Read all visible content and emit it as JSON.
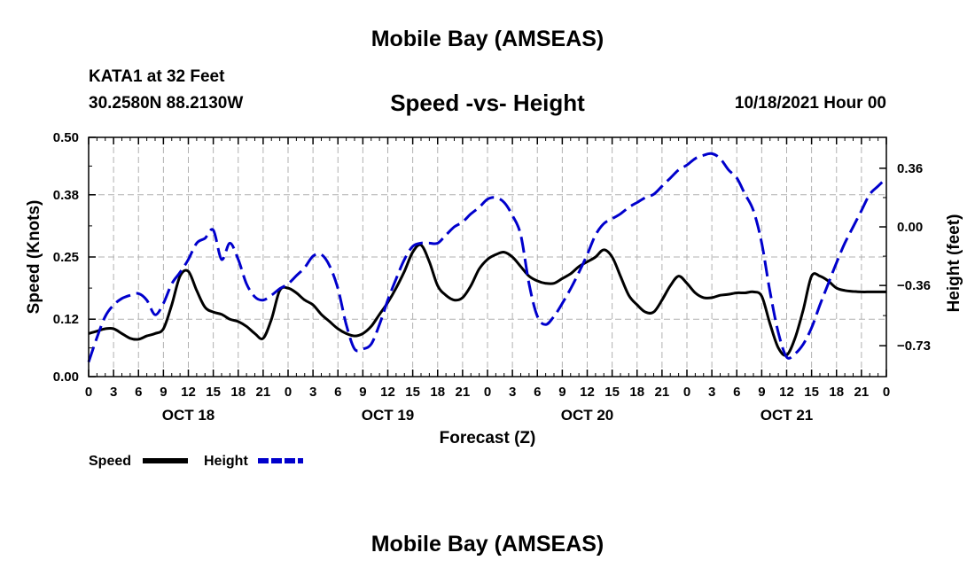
{
  "header": {
    "title": "Mobile Bay (AMSEAS)",
    "station": "KATA1 at 32 Feet",
    "coordinates": "30.2580N  88.2130W",
    "subtitle": "Speed -vs- Height",
    "datetime": "10/18/2021 Hour 00"
  },
  "footer": {
    "title": "Mobile Bay (AMSEAS)"
  },
  "chart_data": {
    "type": "line",
    "title": "Speed -vs- Height",
    "xlabel": "Forecast (Z)",
    "ylabel": "Speed (Knots)",
    "y2label": "Height (feet)",
    "grid": true,
    "xlim": [
      0,
      96
    ],
    "ylim": [
      0,
      0.5
    ],
    "y2lim": [
      -0.92,
      0.55
    ],
    "yticks": [
      0.0,
      0.12,
      0.25,
      0.38,
      0.5
    ],
    "ytick_labels": [
      "0.00",
      "0.12",
      "0.25",
      "0.38",
      "0.50"
    ],
    "y2ticks": [
      -0.73,
      -0.36,
      0.0,
      0.36
    ],
    "y2tick_labels": [
      "−0.73",
      "−0.36",
      "0.00",
      "0.36"
    ],
    "xticks": [
      0,
      3,
      6,
      9,
      12,
      15,
      18,
      21,
      24,
      27,
      30,
      33,
      36,
      39,
      42,
      45,
      48,
      51,
      54,
      57,
      60,
      63,
      66,
      69,
      72,
      75,
      78,
      81,
      84,
      87,
      90,
      93,
      96
    ],
    "xtick_labels": [
      "0",
      "3",
      "6",
      "9",
      "12",
      "15",
      "18",
      "21",
      "0",
      "3",
      "6",
      "9",
      "12",
      "15",
      "18",
      "21",
      "0",
      "3",
      "6",
      "9",
      "12",
      "15",
      "18",
      "21",
      "0",
      "3",
      "6",
      "9",
      "12",
      "15",
      "18",
      "21",
      "0"
    ],
    "day_labels": [
      {
        "hour": 12,
        "label": "OCT 18"
      },
      {
        "hour": 36,
        "label": "OCT 19"
      },
      {
        "hour": 60,
        "label": "OCT 20"
      },
      {
        "hour": 84,
        "label": "OCT 21"
      }
    ],
    "legend_location": "bottom-left",
    "series": [
      {
        "name": "Speed",
        "legend": "Speed",
        "axis": "left",
        "color": "#000000",
        "style": "solid",
        "x": [
          0,
          1,
          2,
          3,
          4,
          5,
          6,
          7,
          8,
          9,
          10,
          11,
          12,
          13,
          14,
          15,
          16,
          17,
          18,
          19,
          20,
          21,
          22,
          23,
          24,
          25,
          26,
          27,
          28,
          29,
          30,
          31,
          32,
          33,
          34,
          35,
          36,
          37,
          38,
          39,
          40,
          41,
          42,
          43,
          44,
          45,
          46,
          47,
          48,
          49,
          50,
          51,
          52,
          53,
          54,
          55,
          56,
          57,
          58,
          59,
          60,
          61,
          62,
          63,
          64,
          65,
          66,
          67,
          68,
          69,
          70,
          71,
          72,
          73,
          74,
          75,
          76,
          77,
          78,
          79,
          80,
          81,
          82,
          83,
          84,
          85,
          86,
          87,
          88,
          89,
          90,
          91,
          92,
          93,
          94,
          95,
          96
        ],
        "values": [
          0.09,
          0.095,
          0.1,
          0.1,
          0.09,
          0.08,
          0.078,
          0.085,
          0.09,
          0.1,
          0.15,
          0.21,
          0.22,
          0.18,
          0.145,
          0.135,
          0.13,
          0.12,
          0.115,
          0.105,
          0.09,
          0.08,
          0.12,
          0.18,
          0.185,
          0.175,
          0.16,
          0.15,
          0.13,
          0.115,
          0.1,
          0.09,
          0.085,
          0.09,
          0.105,
          0.13,
          0.155,
          0.185,
          0.22,
          0.26,
          0.275,
          0.24,
          0.19,
          0.17,
          0.16,
          0.165,
          0.19,
          0.225,
          0.245,
          0.255,
          0.26,
          0.25,
          0.23,
          0.21,
          0.2,
          0.195,
          0.195,
          0.205,
          0.215,
          0.23,
          0.24,
          0.25,
          0.265,
          0.25,
          0.21,
          0.17,
          0.15,
          0.135,
          0.135,
          0.16,
          0.19,
          0.21,
          0.195,
          0.175,
          0.165,
          0.165,
          0.17,
          0.172,
          0.175,
          0.175,
          0.177,
          0.168,
          0.11,
          0.06,
          0.045,
          0.08,
          0.14,
          0.21,
          0.21,
          0.2,
          0.185,
          0.18,
          0.178,
          0.177,
          0.177,
          0.177,
          0.177
        ]
      },
      {
        "name": "Height",
        "legend": "Height",
        "axis": "right",
        "color": "#0000cc",
        "style": "dashed",
        "x": [
          0,
          1,
          2,
          3,
          4,
          5,
          6,
          7,
          8,
          9,
          10,
          11,
          12,
          13,
          14,
          15,
          16,
          17,
          18,
          19,
          20,
          21,
          22,
          23,
          24,
          25,
          26,
          27,
          28,
          29,
          30,
          31,
          32,
          33,
          34,
          35,
          36,
          37,
          38,
          39,
          40,
          41,
          42,
          43,
          44,
          45,
          46,
          47,
          48,
          49,
          50,
          51,
          52,
          53,
          54,
          55,
          56,
          57,
          58,
          59,
          60,
          61,
          62,
          63,
          64,
          65,
          66,
          67,
          68,
          69,
          70,
          71,
          72,
          73,
          74,
          75,
          76,
          77,
          78,
          79,
          80,
          81,
          82,
          83,
          84,
          85,
          86,
          87,
          88,
          89,
          90,
          91,
          92,
          93,
          94,
          95,
          96
        ],
        "values": [
          -0.83,
          -0.68,
          -0.55,
          -0.48,
          -0.44,
          -0.42,
          -0.41,
          -0.45,
          -0.54,
          -0.47,
          -0.35,
          -0.28,
          -0.2,
          -0.1,
          -0.07,
          -0.02,
          -0.2,
          -0.1,
          -0.2,
          -0.35,
          -0.43,
          -0.45,
          -0.42,
          -0.38,
          -0.35,
          -0.3,
          -0.25,
          -0.18,
          -0.17,
          -0.24,
          -0.38,
          -0.6,
          -0.75,
          -0.75,
          -0.72,
          -0.6,
          -0.45,
          -0.32,
          -0.2,
          -0.12,
          -0.1,
          -0.1,
          -0.1,
          -0.05,
          0.0,
          0.03,
          0.08,
          0.12,
          0.17,
          0.18,
          0.15,
          0.07,
          -0.05,
          -0.35,
          -0.55,
          -0.6,
          -0.55,
          -0.47,
          -0.38,
          -0.28,
          -0.17,
          -0.05,
          0.02,
          0.05,
          0.08,
          0.12,
          0.15,
          0.18,
          0.2,
          0.25,
          0.3,
          0.35,
          0.38,
          0.42,
          0.44,
          0.45,
          0.42,
          0.35,
          0.3,
          0.2,
          0.1,
          -0.1,
          -0.4,
          -0.65,
          -0.8,
          -0.78,
          -0.72,
          -0.62,
          -0.48,
          -0.35,
          -0.22,
          -0.1,
          0.0,
          0.1,
          0.2,
          0.25,
          0.3
        ]
      }
    ]
  }
}
